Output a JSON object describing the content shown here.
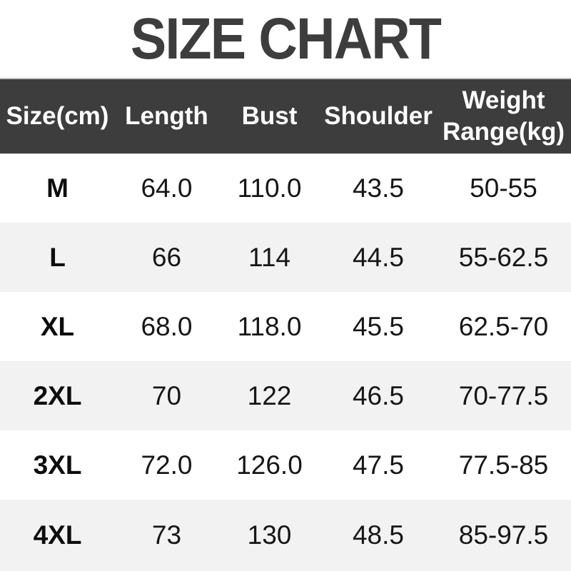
{
  "page_title": "SIZE CHART",
  "chart_data": {
    "type": "table",
    "title": "SIZE CHART",
    "columns": [
      "Size(cm)",
      "Length",
      "Bust",
      "Shoulder",
      "Weight Range(kg)"
    ],
    "rows": [
      [
        "M",
        "64.0",
        "110.0",
        "43.5",
        "50-55"
      ],
      [
        "L",
        "66",
        "114",
        "44.5",
        "55-62.5"
      ],
      [
        "XL",
        "68.0",
        "118.0",
        "45.5",
        "62.5-70"
      ],
      [
        "2XL",
        "70",
        "122",
        "46.5",
        "70-77.5"
      ],
      [
        "3XL",
        "72.0",
        "126.0",
        "47.5",
        "77.5-85"
      ],
      [
        "4XL",
        "73",
        "130",
        "48.5",
        "85-97.5"
      ]
    ],
    "layout_hints": {
      "zebra_striping": true,
      "first_column_bold": true,
      "header_style": "dark-band-white-text",
      "weight_header_wraps_to_two_lines": true
    }
  },
  "colors": {
    "title_text": "#3d3d3d",
    "header_bg": "#3d3d3d",
    "header_text": "#ffffff",
    "header_top_border": "#c6c6c6",
    "row_bg": "#ffffff",
    "row_alt_bg": "#f2f2f2",
    "cell_text": "#161616"
  }
}
